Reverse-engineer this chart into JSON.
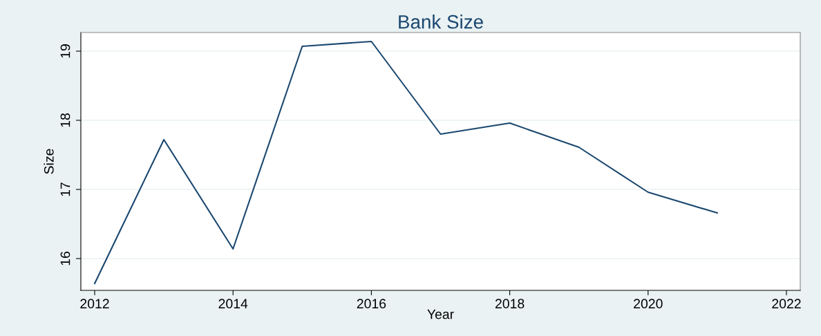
{
  "chart_data": {
    "type": "line",
    "title": "Bank Size",
    "xlabel": "Year",
    "ylabel": "Size",
    "x": [
      2012,
      2013,
      2014,
      2015,
      2016,
      2017,
      2018,
      2019,
      2020,
      2021
    ],
    "series": [
      {
        "color": "#1a476f",
        "values": [
          15.64,
          17.72,
          16.14,
          19.07,
          19.14,
          17.8,
          17.96,
          17.61,
          16.96,
          16.66
        ]
      }
    ],
    "xlim": [
      2011.8,
      2022.2
    ],
    "xticks": [
      2012,
      2014,
      2016,
      2018,
      2020,
      2022
    ],
    "ylim": [
      15.54,
      19.27
    ],
    "yticks": [
      16,
      17,
      18,
      19
    ],
    "grid": "y",
    "line_style": "solid"
  }
}
